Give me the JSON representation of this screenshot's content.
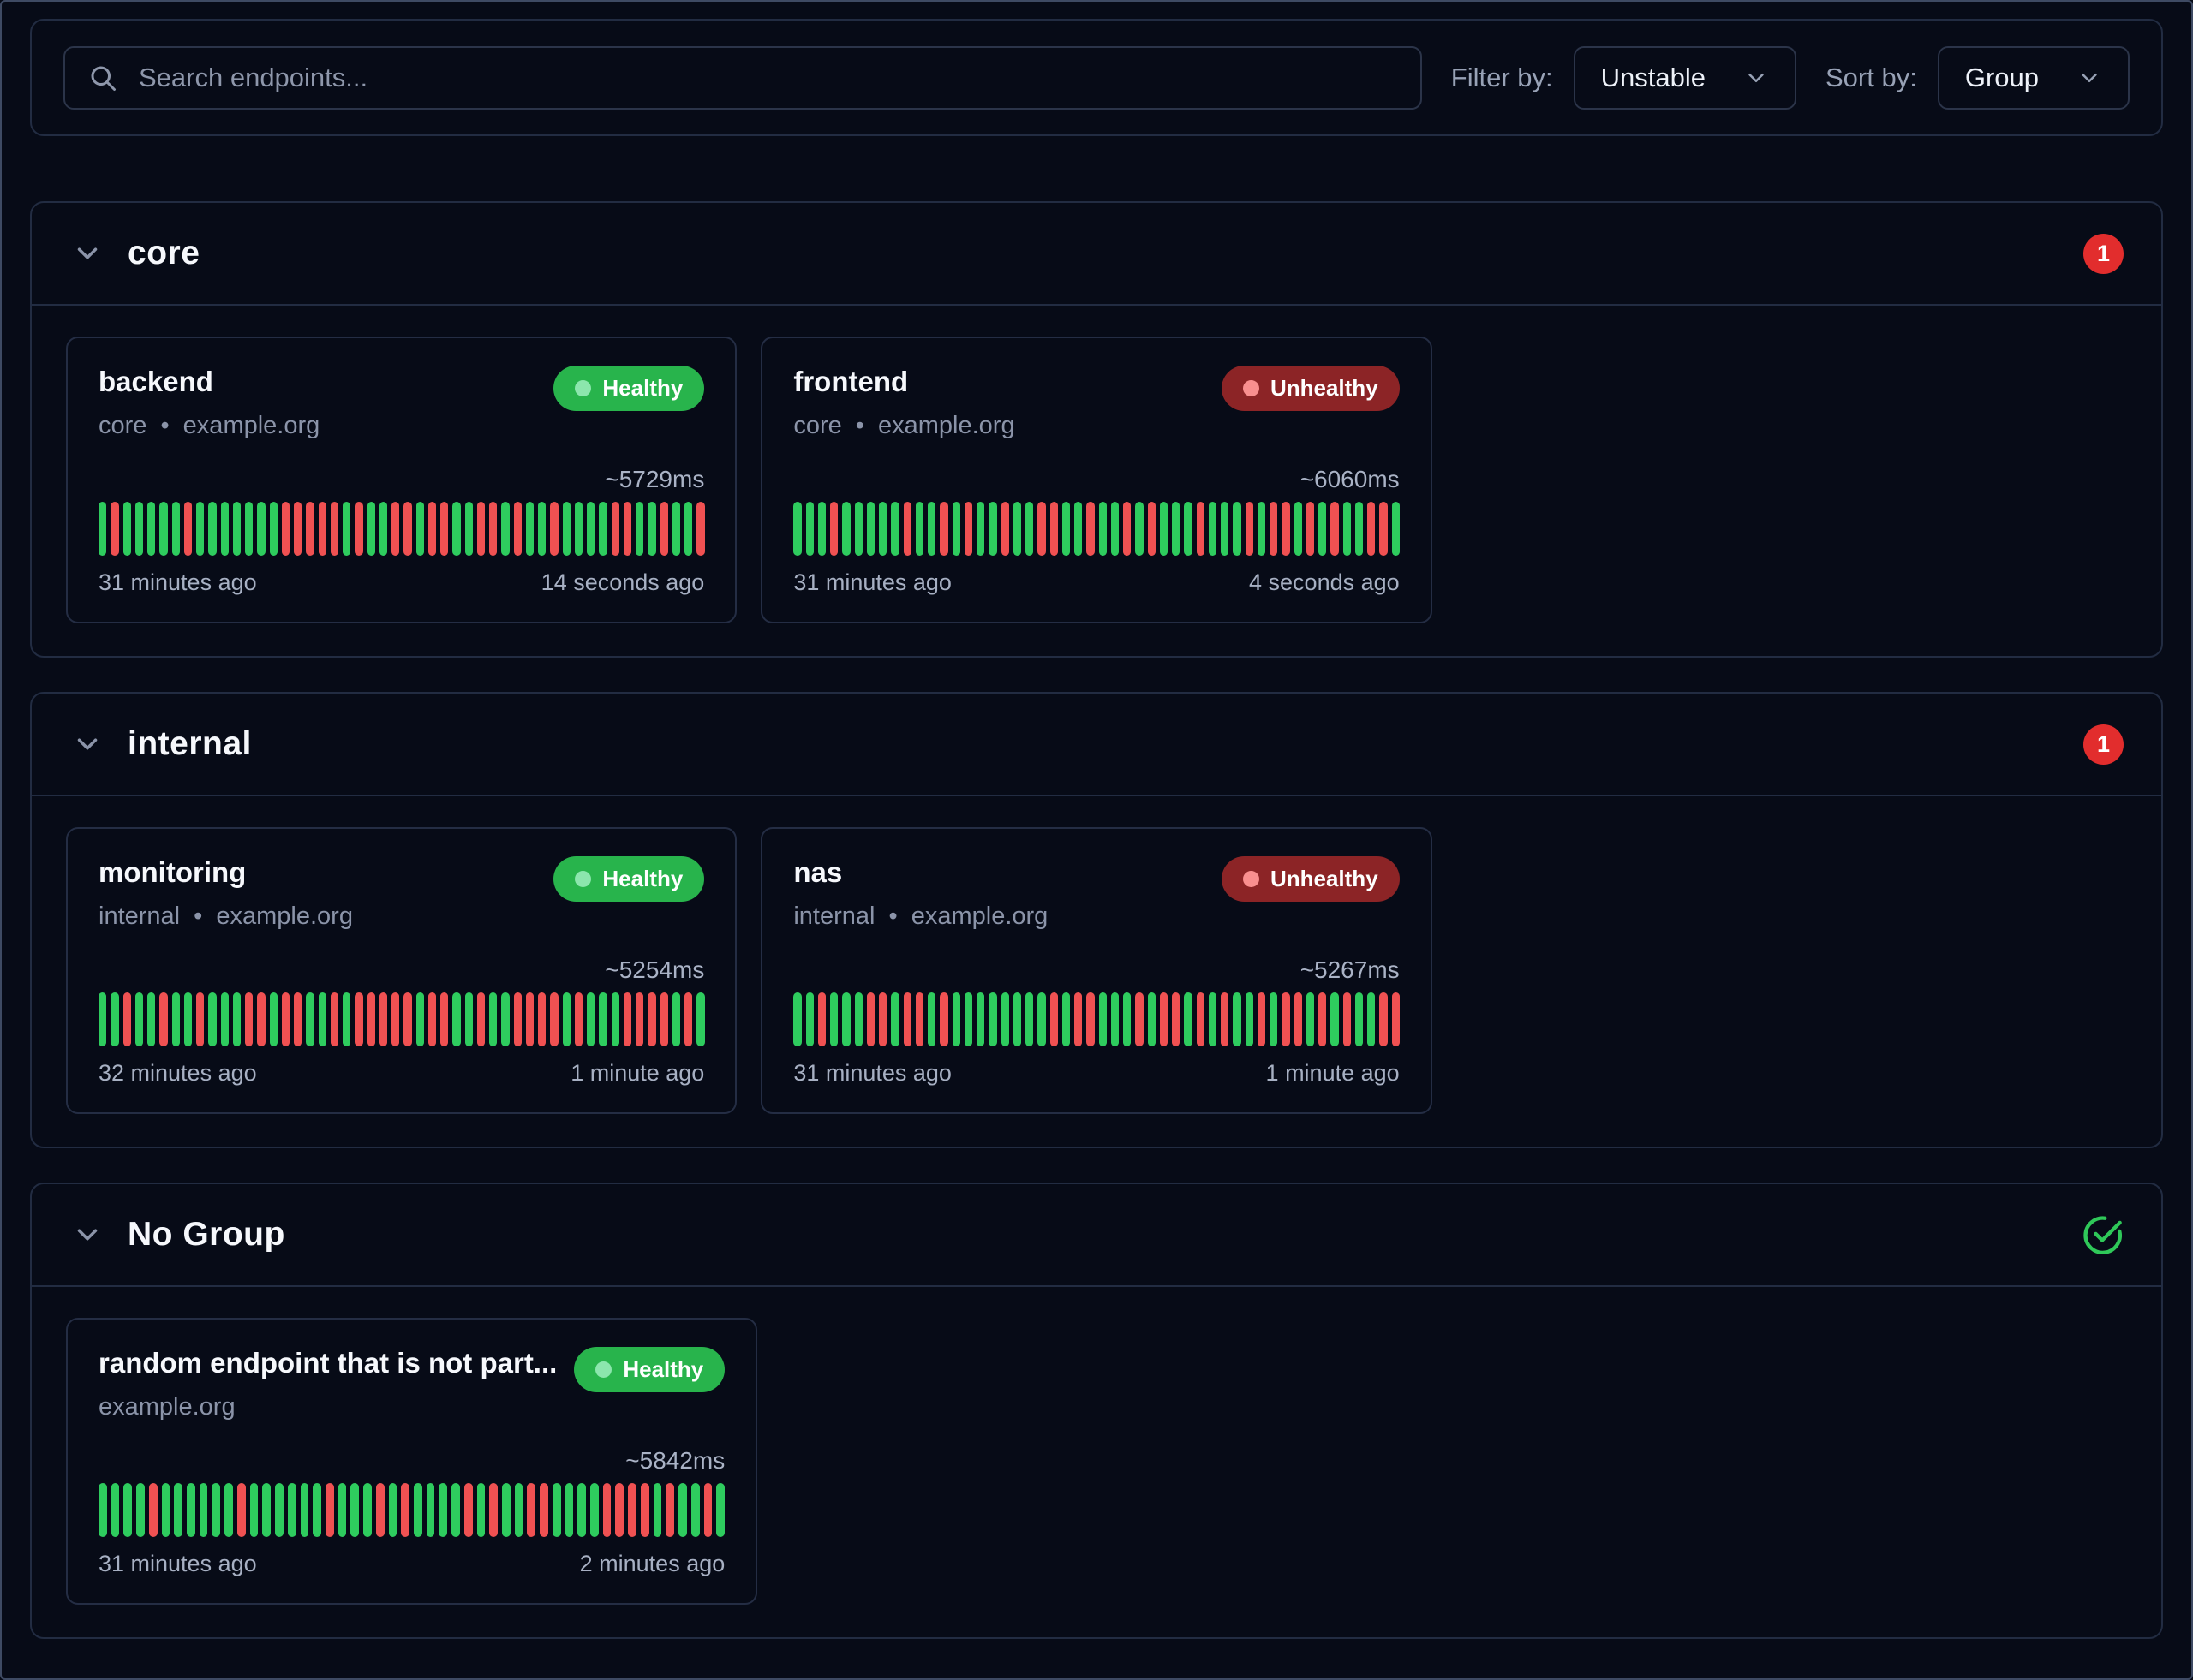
{
  "toolbar": {
    "search_placeholder": "Search endpoints...",
    "filter_label": "Filter by:",
    "filter_value": "Unstable",
    "sort_label": "Sort by:",
    "sort_value": "Group"
  },
  "groups": [
    {
      "name": "core",
      "badge_count": "1",
      "endpoints": [
        {
          "name": "backend",
          "subtitle": "core • example.org",
          "status": "Healthy",
          "response_time": "~5729ms",
          "oldest": "31 minutes ago",
          "newest": "14 seconds ago",
          "bars": "GRGGGGGRGGGGGGGRRRRRGRGGRRGRRGGRRGRGGRGGGGRRGGRGGR"
        },
        {
          "name": "frontend",
          "subtitle": "core • example.org",
          "status": "Unhealthy",
          "response_time": "~6060ms",
          "oldest": "31 minutes ago",
          "newest": "4 seconds ago",
          "bars": "GGGRGGGGGRGGRGRGGRGGRRGGRGGRGRGGGRGGGRGRRGRGRGGRRG"
        }
      ]
    },
    {
      "name": "internal",
      "badge_count": "1",
      "endpoints": [
        {
          "name": "monitoring",
          "subtitle": "internal • example.org",
          "status": "Healthy",
          "response_time": "~5254ms",
          "oldest": "32 minutes ago",
          "newest": "1 minute ago",
          "bars": "GGRGGRGGRGGGRRGRRGGRGRRRRRGRRGGRGGRRRRGRGGGRRRRGRG"
        },
        {
          "name": "nas",
          "subtitle": "internal • example.org",
          "status": "Unhealthy",
          "response_time": "~5267ms",
          "oldest": "31 minutes ago",
          "newest": "1 minute ago",
          "bars": "GGRGGGRRGRRGRGGGGGGGGRGRRGGGRGRRGRGRGGRGRRGRGRGGRR"
        }
      ]
    },
    {
      "name": "No Group",
      "badge_check": "all-healthy",
      "endpoints": [
        {
          "name": "random endpoint that is not part...",
          "subtitle": "example.org",
          "status": "Healthy",
          "response_time": "~5842ms",
          "oldest": "31 minutes ago",
          "newest": "2 minutes ago",
          "bars": "GGGGRGGGGGGRGGGGGGRGGGRGRGGGGRGRGGRRGGGGRRRRGRGGRG"
        }
      ]
    }
  ],
  "colors": {
    "background": "#070b17",
    "border": "#222c42",
    "bar_success": "#2ecc5e",
    "bar_failure": "#f05152",
    "badge_healthy": "#28b44c",
    "badge_unhealthy": "#8c2426",
    "count_badge": "#e22d2d",
    "check_icon": "#2fc859"
  }
}
